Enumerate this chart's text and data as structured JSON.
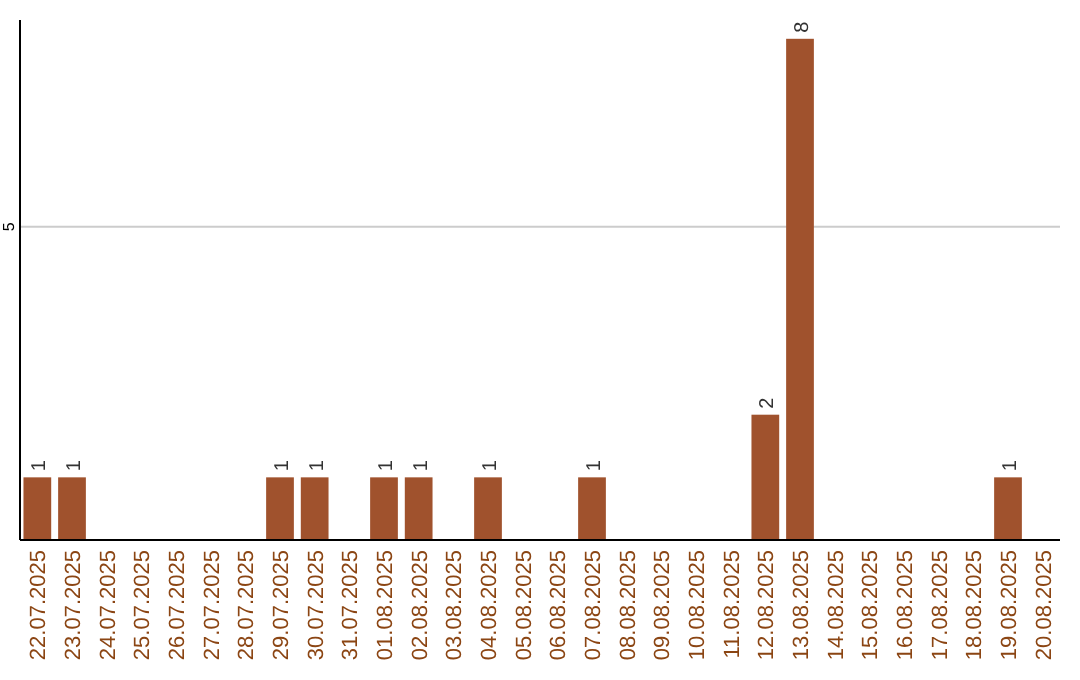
{
  "chart_data": {
    "type": "bar",
    "categories": [
      "22.07.2025",
      "23.07.2025",
      "24.07.2025",
      "25.07.2025",
      "26.07.2025",
      "27.07.2025",
      "28.07.2025",
      "29.07.2025",
      "30.07.2025",
      "31.07.2025",
      "01.08.2025",
      "02.08.2025",
      "03.08.2025",
      "04.08.2025",
      "05.08.2025",
      "06.08.2025",
      "07.08.2025",
      "08.08.2025",
      "09.08.2025",
      "10.08.2025",
      "11.08.2025",
      "12.08.2025",
      "13.08.2025",
      "14.08.2025",
      "15.08.2025",
      "16.08.2025",
      "17.08.2025",
      "18.08.2025",
      "19.08.2025",
      "20.08.2025"
    ],
    "values": [
      1,
      1,
      0,
      0,
      0,
      0,
      0,
      1,
      1,
      0,
      1,
      1,
      0,
      1,
      0,
      0,
      1,
      0,
      0,
      0,
      0,
      2,
      8,
      0,
      0,
      0,
      0,
      0,
      1,
      0
    ],
    "color": "#a0522d",
    "ylim": [
      0,
      8.3
    ],
    "yticks": [
      5
    ],
    "grid": "y",
    "value_labels": [
      "1",
      "1",
      null,
      null,
      null,
      null,
      null,
      "1",
      "1",
      null,
      "1",
      "1",
      null,
      "1",
      null,
      null,
      "1",
      null,
      null,
      null,
      null,
      "2",
      "8",
      null,
      null,
      null,
      null,
      null,
      "1",
      null
    ]
  }
}
